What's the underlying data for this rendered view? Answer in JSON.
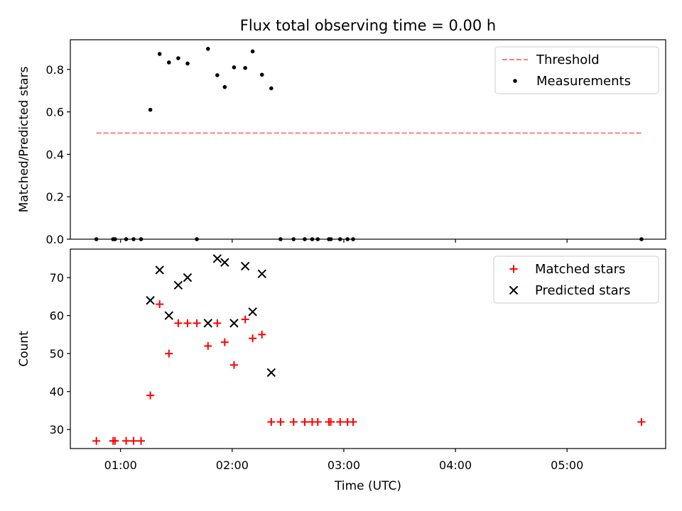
{
  "chart_data": [
    {
      "type": "scatter",
      "title": "Flux total observing time = 0.00 h",
      "xlabel": "",
      "ylabel": "Matched/Predicted stars",
      "x_is_time_utc": true,
      "xlim": [
        "00:33",
        "05:53"
      ],
      "ylim": [
        0,
        0.94
      ],
      "yticks": [
        "0.0",
        "0.2",
        "0.4",
        "0.6",
        "0.8"
      ],
      "ytick_values": [
        0,
        0.2,
        0.4,
        0.6,
        0.8
      ],
      "xtick_values": [
        "01:00",
        "02:00",
        "03:00",
        "04:00",
        "05:00"
      ],
      "show_xtick_labels": false,
      "legend_position": "top-right",
      "series": [
        {
          "name": "Threshold",
          "kind": "line",
          "style": "dashed",
          "color": "#ff7f7f",
          "x": [
            "00:47",
            "05:41"
          ],
          "y": [
            0.5,
            0.5
          ]
        },
        {
          "name": "Measurements",
          "kind": "scatter",
          "marker": "dot",
          "color": "#000000",
          "x": [
            "00:47",
            "00:56",
            "00:57",
            "01:03",
            "01:07",
            "01:11",
            "01:16",
            "01:21",
            "01:26",
            "01:31",
            "01:36",
            "01:41",
            "01:47",
            "01:52",
            "01:56",
            "02:01",
            "02:07",
            "02:11",
            "02:16",
            "02:21",
            "02:26",
            "02:33",
            "02:39",
            "02:43",
            "02:46",
            "02:52",
            "02:53",
            "02:58",
            "03:02",
            "03:05",
            "05:40"
          ],
          "y": [
            0,
            0,
            0,
            0,
            0,
            0,
            0.61,
            0.873,
            0.833,
            0.853,
            0.828,
            0,
            0.897,
            0.773,
            0.717,
            0.81,
            0.807,
            0.885,
            0.775,
            0.711,
            0,
            0,
            0,
            0,
            0,
            0,
            0,
            0,
            0,
            0,
            0
          ]
        }
      ]
    },
    {
      "type": "scatter",
      "title": "",
      "xlabel": "Time (UTC)",
      "ylabel": "Count",
      "x_is_time_utc": true,
      "xlim": [
        "00:33",
        "05:53"
      ],
      "ylim": [
        25,
        77.5
      ],
      "yticks": [
        "30",
        "40",
        "50",
        "60",
        "70"
      ],
      "ytick_values": [
        30,
        40,
        50,
        60,
        70
      ],
      "xticks": [
        "01:00",
        "02:00",
        "03:00",
        "04:00",
        "05:00"
      ],
      "xtick_values": [
        "01:00",
        "02:00",
        "03:00",
        "04:00",
        "05:00"
      ],
      "show_xtick_labels": true,
      "legend_position": "top-right",
      "series": [
        {
          "name": "Matched stars",
          "kind": "scatter",
          "marker": "plus",
          "color": "#ff0000",
          "x": [
            "00:47",
            "00:56",
            "00:57",
            "01:03",
            "01:07",
            "01:11",
            "01:16",
            "01:21",
            "01:26",
            "01:31",
            "01:36",
            "01:41",
            "01:47",
            "01:52",
            "01:56",
            "02:01",
            "02:07",
            "02:11",
            "02:16",
            "02:21",
            "02:26",
            "02:33",
            "02:39",
            "02:43",
            "02:46",
            "02:52",
            "02:53",
            "02:58",
            "03:02",
            "03:05",
            "05:40"
          ],
          "y": [
            27,
            27,
            27,
            27,
            27,
            27,
            39,
            63,
            50,
            58,
            58,
            58,
            52,
            58,
            53,
            47,
            59,
            54,
            55,
            32,
            32,
            32,
            32,
            32,
            32,
            32,
            32,
            32,
            32,
            32,
            32
          ]
        },
        {
          "name": "Predicted stars",
          "kind": "scatter",
          "marker": "x",
          "color": "#000000",
          "x": [
            "01:16",
            "01:21",
            "01:26",
            "01:31",
            "01:36",
            "01:47",
            "01:52",
            "01:56",
            "02:01",
            "02:07",
            "02:11",
            "02:16",
            "02:21"
          ],
          "y": [
            64,
            72,
            60,
            68,
            70,
            58,
            75,
            74,
            58,
            73,
            61,
            71,
            45
          ]
        }
      ]
    }
  ]
}
